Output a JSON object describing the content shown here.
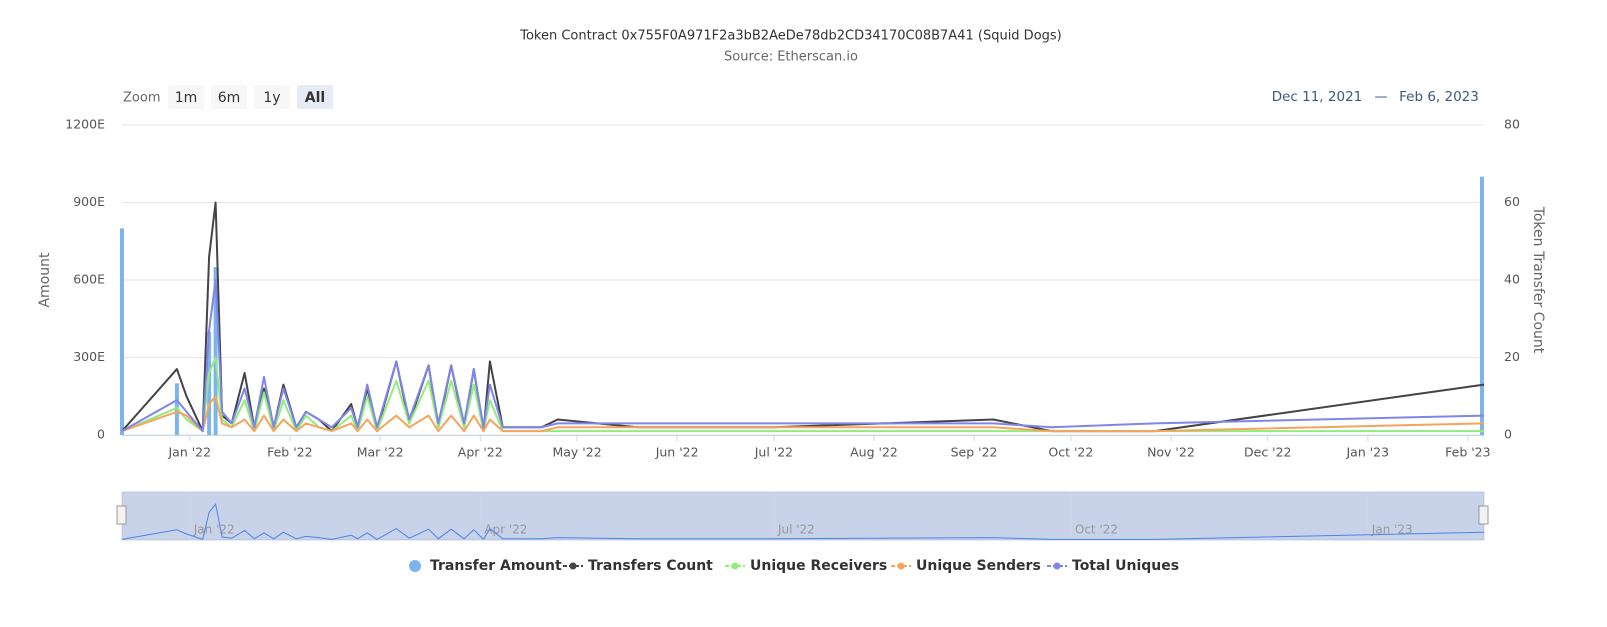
{
  "chart_data": {
    "type": "line",
    "title": "Token Contract 0x755F0A971F2a3bB2AeDe78db2CD34170C08B7A41 (Squid Dogs)",
    "subtitle": "Source: Etherscan.io",
    "zoom_label": "Zoom",
    "zoom_buttons": [
      "1m",
      "6m",
      "1y",
      "All"
    ],
    "range_from": "Dec 11, 2021",
    "range_separator": "—",
    "range_to": "Feb 6, 2023",
    "y_label": "Amount",
    "y2_label": "Token Transfer Count",
    "xlim": [
      "2021-12-11",
      "2023-02-06"
    ],
    "xticks": [
      {
        "value": "2022-01-01",
        "label": "Jan '22"
      },
      {
        "value": "2022-02-01",
        "label": "Feb '22"
      },
      {
        "value": "2022-03-01",
        "label": "Mar '22"
      },
      {
        "value": "2022-04-01",
        "label": "Apr '22"
      },
      {
        "value": "2022-05-01",
        "label": "May '22"
      },
      {
        "value": "2022-06-01",
        "label": "Jun '22"
      },
      {
        "value": "2022-07-01",
        "label": "Jul '22"
      },
      {
        "value": "2022-08-01",
        "label": "Aug '22"
      },
      {
        "value": "2022-09-01",
        "label": "Sep '22"
      },
      {
        "value": "2022-10-01",
        "label": "Oct '22"
      },
      {
        "value": "2022-11-01",
        "label": "Nov '22"
      },
      {
        "value": "2022-12-01",
        "label": "Dec '22"
      },
      {
        "value": "2023-01-01",
        "label": "Jan '23"
      },
      {
        "value": "2023-02-01",
        "label": "Feb '23"
      }
    ],
    "navigator_xticks": [
      {
        "value": "2022-01-01",
        "label": "Jan '22"
      },
      {
        "value": "2022-04-01",
        "label": "Apr '22"
      },
      {
        "value": "2022-07-01",
        "label": "Jul '22"
      },
      {
        "value": "2022-10-01",
        "label": "Oct '22"
      },
      {
        "value": "2023-01-01",
        "label": "Jan '23"
      }
    ],
    "ylim": [
      0,
      1200
    ],
    "yticks": [
      0,
      {
        "value": 300,
        "label": "300E"
      },
      {
        "value": 600,
        "label": "600E"
      },
      {
        "value": 900,
        "label": "900E"
      },
      {
        "value": 1200,
        "label": "1200E"
      }
    ],
    "y2lim": [
      0,
      80
    ],
    "y2ticks": [
      0,
      20,
      40,
      60,
      80
    ],
    "grid": true,
    "legend": "bottom",
    "x": [
      "2021-12-11",
      "2021-12-28",
      "2021-12-31",
      "2022-01-05",
      "2022-01-07",
      "2022-01-09",
      "2022-01-11",
      "2022-01-14",
      "2022-01-18",
      "2022-01-21",
      "2022-01-24",
      "2022-01-27",
      "2022-01-30",
      "2022-02-03",
      "2022-02-06",
      "2022-02-10",
      "2022-02-14",
      "2022-02-20",
      "2022-02-22",
      "2022-02-25",
      "2022-02-28",
      "2022-03-06",
      "2022-03-10",
      "2022-03-16",
      "2022-03-19",
      "2022-03-23",
      "2022-03-27",
      "2022-03-30",
      "2022-04-02",
      "2022-04-04",
      "2022-04-08",
      "2022-04-20",
      "2022-04-25",
      "2022-05-20",
      "2022-07-01",
      "2022-09-07",
      "2022-09-25",
      "2022-10-27",
      "2023-02-06"
    ],
    "series": [
      {
        "name": "Transfer Amount",
        "type": "bar",
        "axis": "y",
        "color": "#7cb5ec",
        "values": [
          800,
          200,
          null,
          null,
          400,
          650,
          null,
          null,
          null,
          null,
          null,
          null,
          null,
          null,
          null,
          null,
          null,
          null,
          null,
          null,
          null,
          null,
          null,
          null,
          null,
          null,
          null,
          null,
          null,
          null,
          null,
          null,
          null,
          null,
          null,
          null,
          null,
          null,
          1000
        ]
      },
      {
        "name": "Transfers Count",
        "type": "line",
        "axis": "y2",
        "color": "#434348",
        "values": [
          1,
          17,
          10,
          1,
          46,
          60,
          5,
          3,
          16,
          2,
          12,
          2,
          13,
          2,
          6,
          4,
          1,
          8,
          2,
          12,
          1,
          19,
          3,
          18,
          2,
          18,
          2,
          17,
          1,
          19,
          2,
          2,
          4,
          2,
          2,
          4,
          1,
          1,
          13
        ]
      },
      {
        "name": "Unique Receivers",
        "type": "line",
        "axis": "y2",
        "color": "#90ed7d",
        "values": [
          1,
          7,
          4,
          1,
          16,
          20,
          4,
          2,
          9,
          1,
          11,
          1,
          9,
          1,
          5,
          2,
          1,
          5,
          1,
          10,
          1,
          14,
          3,
          14,
          2,
          14,
          2,
          13,
          1,
          9,
          1,
          1,
          1,
          1,
          1,
          1,
          1,
          1,
          1
        ]
      },
      {
        "name": "Unique Senders",
        "type": "line",
        "axis": "y2",
        "color": "#f7a35c",
        "values": [
          1,
          6,
          5,
          1,
          8,
          10,
          3,
          2,
          4,
          1,
          5,
          1,
          4,
          1,
          3,
          2,
          1,
          3,
          1,
          4,
          1,
          5,
          2,
          5,
          1,
          5,
          1,
          5,
          1,
          4,
          1,
          1,
          2,
          2,
          2,
          2,
          1,
          1,
          3
        ]
      },
      {
        "name": "Total Uniques",
        "type": "line",
        "axis": "y2",
        "color": "#8085e9",
        "values": [
          1,
          9,
          6,
          1,
          27,
          40,
          6,
          3,
          12,
          2,
          15,
          2,
          12,
          2,
          6,
          4,
          2,
          7,
          2,
          13,
          2,
          19,
          4,
          18,
          3,
          18,
          3,
          17,
          2,
          13,
          2,
          2,
          3,
          3,
          3,
          3,
          2,
          3,
          5
        ]
      }
    ]
  }
}
